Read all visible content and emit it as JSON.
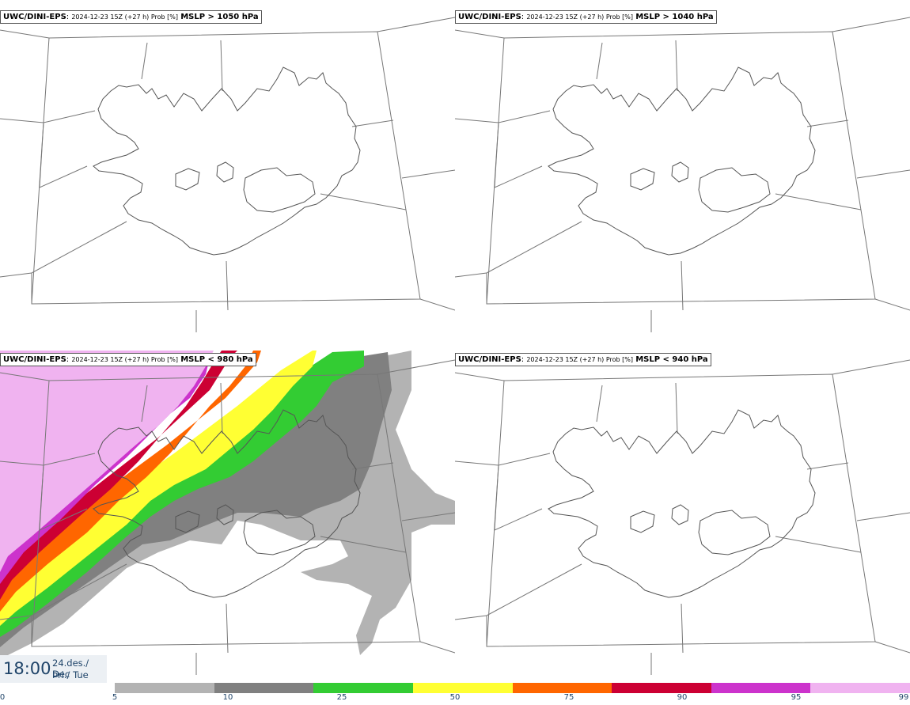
{
  "panels": [
    {
      "source": "UWC/DINI-EPS",
      "run": "2024-12-23 15Z (+27 h) Prob [%]",
      "param": "MSLP > 1050 hPa"
    },
    {
      "source": "UWC/DINI-EPS",
      "run": "2024-12-23 15Z (+27 h) Prob [%]",
      "param": "MSLP > 1040 hPa"
    },
    {
      "source": "UWC/DINI-EPS",
      "run": "2024-12-23 15Z (+27 h) Prob [%]",
      "param": "MSLP < 980 hPa"
    },
    {
      "source": "UWC/DINI-EPS",
      "run": "2024-12-23 15Z (+27 h) Prob [%]",
      "param": "MSLP < 940 hPa"
    }
  ],
  "valid_time": {
    "time": "18:00",
    "date_line1": "24.des./ Dec",
    "date_line2": "Þri./ Tue"
  },
  "legend": {
    "ticks": [
      "0",
      "5",
      "10",
      "25",
      "50",
      "75",
      "90",
      "95",
      "99"
    ],
    "colors": [
      "#b3b3b3",
      "#808080",
      "#33cc33",
      "#ffff33",
      "#ff6600",
      "#cc0033",
      "#cc33cc",
      "#f0b3f0"
    ]
  }
}
